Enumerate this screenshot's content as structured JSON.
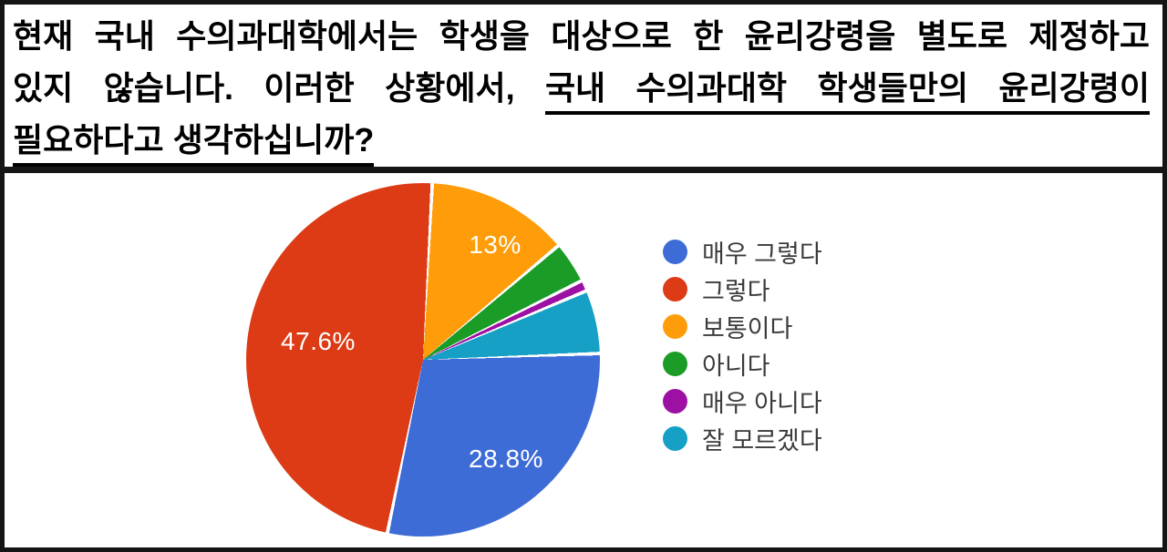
{
  "question": {
    "line1": "현재 국내 수의과대학에서는 학생을 대상으로 한 윤리강령을 별도로 제정하고",
    "line2_normal": "있지 않습니다. 이러한 상황에서, ",
    "line2_underlined": "국내 수의과대학 학생들만의 윤리강령이",
    "line3_underlined": "필요하다고 생각하십니까?"
  },
  "chart_data": {
    "type": "pie",
    "title": "",
    "legend_position": "right",
    "direction": "clockwise",
    "start_angle_deg": 3,
    "draw_order_from_top": [
      2,
      3,
      4,
      5,
      0,
      1
    ],
    "separator_color": "#ffffff",
    "separator_gap_pct": 0.16,
    "series": [
      {
        "label": "매우 그렇다",
        "value": 28.8,
        "color": "#3e6cd6",
        "data_label": "28.8%"
      },
      {
        "label": "그렇다",
        "value": 47.6,
        "color": "#dc3b16",
        "data_label": "47.6%"
      },
      {
        "label": "보통이다",
        "value": 13.0,
        "color": "#fe9c0a",
        "data_label": "13%"
      },
      {
        "label": "아니다",
        "value": 3.8,
        "color": "#1b9c27",
        "data_label": ""
      },
      {
        "label": "매우 아니다",
        "value": 1.0,
        "color": "#9c10a4",
        "data_label": ""
      },
      {
        "label": "잘 모르겠다",
        "value": 5.8,
        "color": "#16a0c6",
        "data_label": ""
      }
    ],
    "data_label_color": "#ffffff",
    "legend_text_color": "#3b3b3b"
  }
}
